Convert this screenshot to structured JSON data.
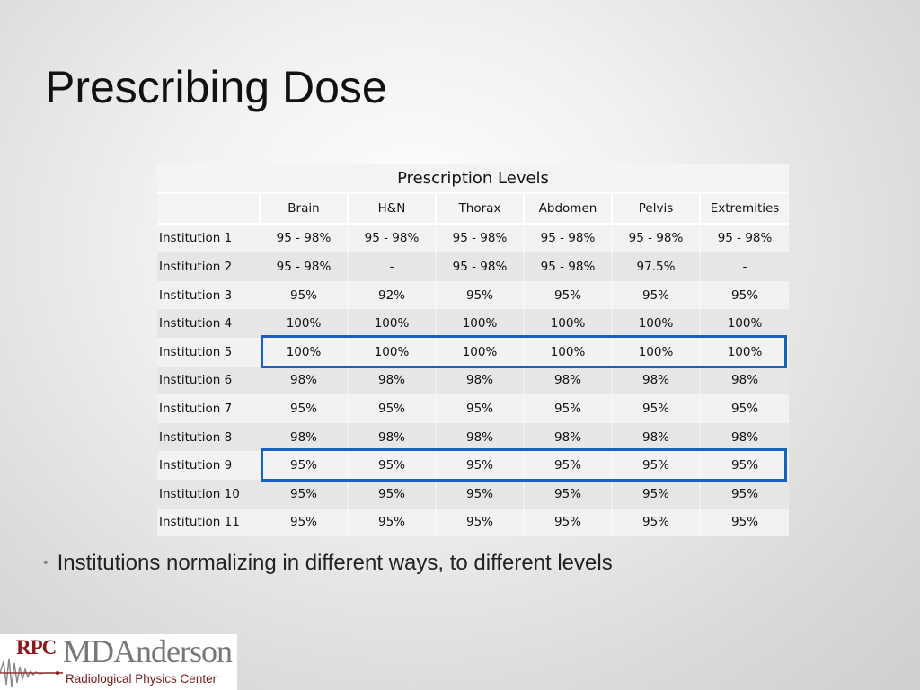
{
  "slide": {
    "title": "Prescribing Dose",
    "bullet": "Institutions normalizing in different ways, to different levels"
  },
  "table": {
    "caption": "Prescription Levels",
    "columns": [
      "",
      "Brain",
      "H&N",
      "Thorax",
      "Abdomen",
      "Pelvis",
      "Extremities"
    ],
    "rows": [
      {
        "institution": "Institution 1",
        "values": [
          "95 - 98%",
          "95 - 98%",
          "95 - 98%",
          "95 - 98%",
          "95 - 98%",
          "95 - 98%"
        ]
      },
      {
        "institution": "Institution 2",
        "values": [
          "95 - 98%",
          "-",
          "95 - 98%",
          "95 - 98%",
          "97.5%",
          "-"
        ]
      },
      {
        "institution": "Institution 3",
        "values": [
          "95%",
          "92%",
          "95%",
          "95%",
          "95%",
          "95%"
        ]
      },
      {
        "institution": "Institution 4",
        "values": [
          "100%",
          "100%",
          "100%",
          "100%",
          "100%",
          "100%"
        ]
      },
      {
        "institution": "Institution 5",
        "values": [
          "100%",
          "100%",
          "100%",
          "100%",
          "100%",
          "100%"
        ]
      },
      {
        "institution": "Institution 6",
        "values": [
          "98%",
          "98%",
          "98%",
          "98%",
          "98%",
          "98%"
        ]
      },
      {
        "institution": "Institution 7",
        "values": [
          "95%",
          "95%",
          "95%",
          "95%",
          "95%",
          "95%"
        ]
      },
      {
        "institution": "Institution 8",
        "values": [
          "98%",
          "98%",
          "98%",
          "98%",
          "98%",
          "98%"
        ]
      },
      {
        "institution": "Institution 9",
        "values": [
          "95%",
          "95%",
          "95%",
          "95%",
          "95%",
          "95%"
        ]
      },
      {
        "institution": "Institution 10",
        "values": [
          "95%",
          "95%",
          "95%",
          "95%",
          "95%",
          "95%"
        ]
      },
      {
        "institution": "Institution 11",
        "values": [
          "95%",
          "95%",
          "95%",
          "95%",
          "95%",
          "95%"
        ]
      }
    ],
    "highlighted_rows": [
      "Institution 5",
      "Institution 9"
    ],
    "highlight_color": "#1a5fc4"
  },
  "logo": {
    "rpc": "RPC",
    "name": "MDAnderson",
    "subtitle": "Radiological Physics Center"
  }
}
